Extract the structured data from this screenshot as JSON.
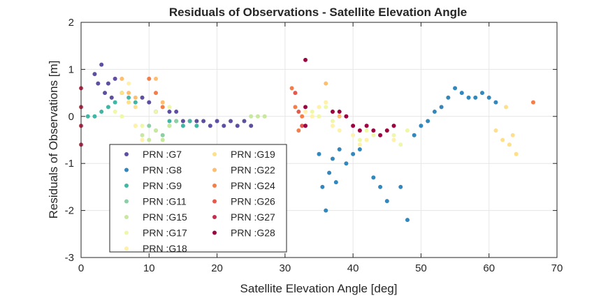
{
  "chart_data": {
    "type": "scatter",
    "title": "Residuals of Observations - Satellite Elevation Angle",
    "xlabel": "Satellite Elevation Angle [deg]",
    "ylabel": "Residuals of Observations [m]",
    "xlim": [
      0,
      70
    ],
    "ylim": [
      -3,
      2
    ],
    "xticks": [
      0,
      10,
      20,
      30,
      40,
      50,
      60,
      70
    ],
    "yticks": [
      -3,
      -2,
      -1,
      0,
      1,
      2
    ],
    "grid": true,
    "legend_position": "bottom-left, inside axes, two columns",
    "series": [
      {
        "name": "PRN :G7",
        "color": "#5e4fa2",
        "points": [
          [
            2,
            0.9
          ],
          [
            2.5,
            0.7
          ],
          [
            3,
            1.1
          ],
          [
            3.5,
            0.5
          ],
          [
            4,
            0.7
          ],
          [
            4.5,
            0.4
          ],
          [
            5,
            0.8
          ],
          [
            9,
            0.4
          ],
          [
            10,
            0.3
          ],
          [
            11,
            0.1
          ],
          [
            13,
            0.1
          ],
          [
            14,
            0.1
          ],
          [
            15,
            -0.1
          ],
          [
            16,
            -0.1
          ],
          [
            17,
            -0.1
          ],
          [
            18,
            -0.1
          ],
          [
            19,
            -0.2
          ],
          [
            20,
            -0.1
          ],
          [
            21,
            -0.2
          ],
          [
            22,
            -0.1
          ],
          [
            23,
            -0.2
          ],
          [
            24,
            -0.1
          ],
          [
            25,
            -0.2
          ]
        ]
      },
      {
        "name": "PRN :G8",
        "color": "#3288bd",
        "points": [
          [
            35,
            -0.8
          ],
          [
            35.5,
            -1.5
          ],
          [
            36,
            -2.0
          ],
          [
            36.5,
            -1.2
          ],
          [
            37,
            -0.9
          ],
          [
            37.5,
            -1.4
          ],
          [
            38,
            -0.7
          ],
          [
            39,
            -1.0
          ],
          [
            40,
            -0.8
          ],
          [
            41,
            -0.7
          ],
          [
            43,
            -1.3
          ],
          [
            44,
            -1.5
          ],
          [
            45,
            -1.8
          ],
          [
            47,
            -1.5
          ],
          [
            48,
            -2.2
          ],
          [
            49,
            -0.4
          ],
          [
            50,
            -0.2
          ],
          [
            51,
            -0.1
          ],
          [
            52,
            0.1
          ],
          [
            53,
            0.2
          ],
          [
            54,
            0.4
          ],
          [
            55,
            0.6
          ],
          [
            56,
            0.5
          ],
          [
            57,
            0.4
          ],
          [
            58,
            0.4
          ],
          [
            59,
            0.5
          ],
          [
            60,
            0.4
          ],
          [
            61,
            0.3
          ]
        ]
      },
      {
        "name": "PRN :G9",
        "color": "#41b6a4",
        "points": [
          [
            1,
            0.0
          ],
          [
            2,
            0.0
          ],
          [
            3,
            0.1
          ],
          [
            4,
            0.2
          ],
          [
            5,
            0.3
          ],
          [
            6,
            0.5
          ],
          [
            7,
            0.4
          ],
          [
            8,
            0.3
          ],
          [
            13,
            -0.1
          ],
          [
            14,
            -0.1
          ],
          [
            15,
            -0.2
          ],
          [
            16,
            -0.1
          ],
          [
            17,
            -0.2
          ]
        ]
      },
      {
        "name": "PRN :G11",
        "color": "#8ccfa4",
        "points": [
          [
            10,
            -0.2
          ],
          [
            11,
            -0.3
          ],
          [
            12,
            -0.4
          ],
          [
            13,
            -0.2
          ],
          [
            14,
            -0.1
          ]
        ]
      },
      {
        "name": "PRN :G15",
        "color": "#c7e89e",
        "points": [
          [
            8,
            -0.2
          ],
          [
            9,
            -0.4
          ],
          [
            10,
            -0.5
          ],
          [
            11,
            -0.3
          ],
          [
            12,
            -0.5
          ],
          [
            13,
            -0.2
          ],
          [
            25,
            0.0
          ],
          [
            26,
            0.0
          ],
          [
            27,
            0.0
          ]
        ]
      },
      {
        "name": "PRN :G17",
        "color": "#eff8a8",
        "points": [
          [
            5,
            0.1
          ],
          [
            6,
            0.0
          ],
          [
            7,
            0.3
          ],
          [
            9,
            -0.2
          ],
          [
            11,
            0.1
          ],
          [
            13,
            0.2
          ],
          [
            34,
            0.1
          ],
          [
            35,
            0.0
          ],
          [
            36,
            0.2
          ],
          [
            37,
            -0.1
          ],
          [
            41,
            -0.5
          ],
          [
            42,
            -0.3
          ],
          [
            43,
            -0.4
          ],
          [
            46,
            -0.4
          ],
          [
            47,
            -0.6
          ],
          [
            48,
            -0.3
          ]
        ]
      },
      {
        "name": "PRN :G18",
        "color": "#fff1a9",
        "points": [
          [
            7,
            0.7
          ],
          [
            8,
            -0.2
          ],
          [
            9,
            -0.5
          ],
          [
            33,
            0.1
          ],
          [
            34,
            0.0
          ],
          [
            35,
            0.2
          ],
          [
            36,
            0.3
          ],
          [
            37,
            -0.2
          ],
          [
            38,
            -0.3
          ],
          [
            40,
            -0.4
          ],
          [
            41,
            -0.6
          ],
          [
            42,
            -0.5
          ],
          [
            45,
            -0.3
          ],
          [
            46,
            -0.5
          ]
        ]
      },
      {
        "name": "PRN :G19",
        "color": "#fee08b",
        "points": [
          [
            6,
            0.5
          ],
          [
            7,
            0.3
          ],
          [
            8,
            0.2
          ],
          [
            61,
            -0.3
          ],
          [
            62,
            -0.5
          ],
          [
            62.5,
            0.2
          ],
          [
            63,
            -0.6
          ],
          [
            63.5,
            -0.4
          ],
          [
            64,
            -0.8
          ]
        ]
      },
      {
        "name": "PRN :G22",
        "color": "#fdbf6f",
        "points": [
          [
            6,
            0.8
          ],
          [
            7,
            0.5
          ],
          [
            8,
            0.4
          ],
          [
            11,
            0.8
          ],
          [
            12,
            0.3
          ],
          [
            36,
            0.7
          ],
          [
            37,
            0.1
          ],
          [
            38,
            0.0
          ]
        ]
      },
      {
        "name": "PRN :G24",
        "color": "#f47e49",
        "points": [
          [
            10,
            0.8
          ],
          [
            11,
            0.5
          ],
          [
            12,
            0.2
          ],
          [
            31,
            0.6
          ],
          [
            31.5,
            0.2
          ],
          [
            32,
            -0.3
          ],
          [
            32.5,
            0.0
          ],
          [
            66.5,
            0.3
          ]
        ]
      },
      {
        "name": "PRN :G26",
        "color": "#e45a4d",
        "points": [
          [
            31.5,
            0.5
          ],
          [
            32,
            0.1
          ],
          [
            32.5,
            -0.2
          ]
        ]
      },
      {
        "name": "PRN :G27",
        "color": "#c42e4d",
        "points": [
          [
            0,
            0.6
          ],
          [
            0,
            0.2
          ],
          [
            0,
            -0.2
          ],
          [
            0,
            -0.6
          ]
        ]
      },
      {
        "name": "PRN :G28",
        "color": "#9e0142",
        "points": [
          [
            33,
            1.2
          ],
          [
            33,
            0.2
          ],
          [
            33,
            -0.2
          ],
          [
            37,
            0.1
          ],
          [
            38,
            0.1
          ],
          [
            39,
            0.0
          ],
          [
            40,
            -0.2
          ],
          [
            41,
            -0.3
          ],
          [
            42,
            -0.2
          ],
          [
            43,
            -0.3
          ],
          [
            44,
            -0.4
          ],
          [
            45,
            -0.3
          ],
          [
            46,
            -0.2
          ]
        ]
      }
    ]
  }
}
